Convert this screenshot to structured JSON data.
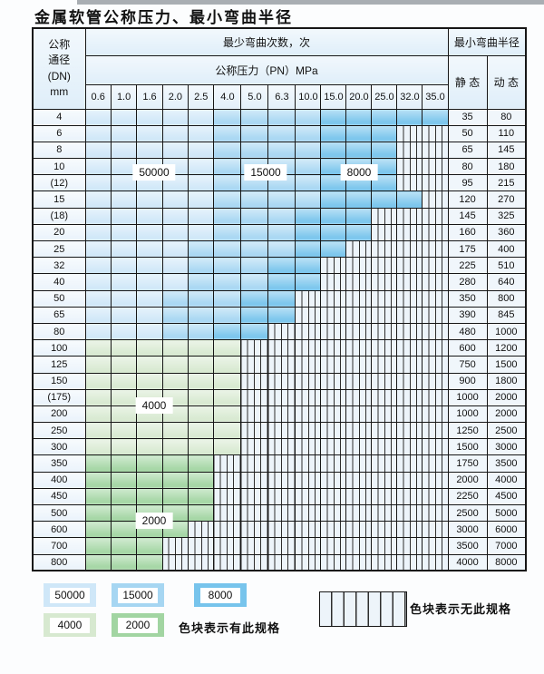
{
  "title": "金属软管公称压力、最小弯曲半径",
  "colors": {
    "50000": "#cfe7f8",
    "15000": "#a6d6f2",
    "8000": "#77c4ec",
    "4000": "#d7e9d0",
    "2000": "#a2d5a2",
    "hatch_bg": "#edf4fa",
    "header_bg": "#dfeef9",
    "border": "#161616"
  },
  "table": {
    "corner_header": "公称\n通径\n(DN)\nmm",
    "cycles_header": "最少弯曲次数，次",
    "pressure_header": "公称压力（PN）MPa",
    "radius_header": "最小弯曲半径",
    "static_label": "静 态",
    "dynamic_label": "动 态",
    "pressure_columns": [
      "0.6",
      "1.0",
      "1.6",
      "2.0",
      "2.5",
      "4.0",
      "5.0",
      "6.3",
      "10.0",
      "15.0",
      "20.0",
      "25.0",
      "32.0",
      "35.0"
    ],
    "overlay_labels": [
      {
        "value": "50000"
      },
      {
        "value": "15000"
      },
      {
        "value": "8000"
      },
      {
        "value": "4000"
      },
      {
        "value": "2000"
      }
    ],
    "rows": [
      {
        "dn": "4",
        "static": "35",
        "dynamic": "80",
        "cells": [
          "50000",
          "50000",
          "50000",
          "50000",
          "50000",
          "15000",
          "15000",
          "15000",
          "15000",
          "8000",
          "8000",
          "8000",
          "8000",
          "8000"
        ]
      },
      {
        "dn": "6",
        "static": "50",
        "dynamic": "110",
        "cells": [
          "50000",
          "50000",
          "50000",
          "50000",
          "50000",
          "15000",
          "15000",
          "15000",
          "15000",
          "8000",
          "8000",
          "8000",
          "",
          ""
        ]
      },
      {
        "dn": "8",
        "static": "65",
        "dynamic": "145",
        "cells": [
          "50000",
          "50000",
          "50000",
          "50000",
          "50000",
          "15000",
          "15000",
          "15000",
          "15000",
          "8000",
          "8000",
          "8000",
          "",
          ""
        ]
      },
      {
        "dn": "10",
        "static": "80",
        "dynamic": "180",
        "cells": [
          "50000",
          "50000",
          "50000",
          "50000",
          "50000",
          "15000",
          "15000",
          "15000",
          "15000",
          "8000",
          "8000",
          "8000",
          "",
          ""
        ]
      },
      {
        "dn": "(12)",
        "static": "95",
        "dynamic": "215",
        "cells": [
          "50000",
          "50000",
          "50000",
          "50000",
          "50000",
          "15000",
          "15000",
          "15000",
          "15000",
          "8000",
          "8000",
          "8000",
          "",
          ""
        ]
      },
      {
        "dn": "15",
        "static": "120",
        "dynamic": "270",
        "cells": [
          "50000",
          "50000",
          "50000",
          "50000",
          "50000",
          "15000",
          "15000",
          "15000",
          "15000",
          "8000",
          "8000",
          "8000",
          "8000",
          ""
        ]
      },
      {
        "dn": "(18)",
        "static": "145",
        "dynamic": "325",
        "cells": [
          "50000",
          "50000",
          "50000",
          "50000",
          "50000",
          "15000",
          "15000",
          "15000",
          "8000",
          "8000",
          "8000",
          "",
          "",
          ""
        ]
      },
      {
        "dn": "20",
        "static": "160",
        "dynamic": "360",
        "cells": [
          "50000",
          "50000",
          "50000",
          "50000",
          "50000",
          "15000",
          "15000",
          "15000",
          "8000",
          "8000",
          "8000",
          "",
          "",
          ""
        ]
      },
      {
        "dn": "25",
        "static": "175",
        "dynamic": "400",
        "cells": [
          "50000",
          "50000",
          "50000",
          "50000",
          "15000",
          "15000",
          "15000",
          "15000",
          "8000",
          "8000",
          "",
          "",
          "",
          ""
        ]
      },
      {
        "dn": "32",
        "static": "225",
        "dynamic": "510",
        "cells": [
          "50000",
          "50000",
          "50000",
          "50000",
          "15000",
          "15000",
          "15000",
          "8000",
          "8000",
          "",
          "",
          "",
          "",
          ""
        ]
      },
      {
        "dn": "40",
        "static": "280",
        "dynamic": "640",
        "cells": [
          "50000",
          "50000",
          "50000",
          "50000",
          "15000",
          "15000",
          "15000",
          "8000",
          "8000",
          "",
          "",
          "",
          "",
          ""
        ]
      },
      {
        "dn": "50",
        "static": "350",
        "dynamic": "800",
        "cells": [
          "50000",
          "50000",
          "50000",
          "15000",
          "15000",
          "15000",
          "8000",
          "8000",
          "",
          "",
          "",
          "",
          "",
          ""
        ]
      },
      {
        "dn": "65",
        "static": "390",
        "dynamic": "845",
        "cells": [
          "50000",
          "50000",
          "50000",
          "15000",
          "15000",
          "15000",
          "8000",
          "8000",
          "",
          "",
          "",
          "",
          "",
          ""
        ]
      },
      {
        "dn": "80",
        "static": "480",
        "dynamic": "1000",
        "cells": [
          "50000",
          "50000",
          "50000",
          "15000",
          "15000",
          "8000",
          "8000",
          "",
          "",
          "",
          "",
          "",
          "",
          ""
        ]
      },
      {
        "dn": "100",
        "static": "600",
        "dynamic": "1200",
        "cells": [
          "4000",
          "4000",
          "4000",
          "4000",
          "4000",
          "4000",
          "",
          "",
          "",
          "",
          "",
          "",
          "",
          ""
        ]
      },
      {
        "dn": "125",
        "static": "750",
        "dynamic": "1500",
        "cells": [
          "4000",
          "4000",
          "4000",
          "4000",
          "4000",
          "4000",
          "",
          "",
          "",
          "",
          "",
          "",
          "",
          ""
        ]
      },
      {
        "dn": "150",
        "static": "900",
        "dynamic": "1800",
        "cells": [
          "4000",
          "4000",
          "4000",
          "4000",
          "4000",
          "4000",
          "",
          "",
          "",
          "",
          "",
          "",
          "",
          ""
        ]
      },
      {
        "dn": "(175)",
        "static": "1000",
        "dynamic": "2000",
        "cells": [
          "4000",
          "4000",
          "4000",
          "4000",
          "4000",
          "4000",
          "",
          "",
          "",
          "",
          "",
          "",
          "",
          ""
        ]
      },
      {
        "dn": "200",
        "static": "1000",
        "dynamic": "2000",
        "cells": [
          "4000",
          "4000",
          "4000",
          "4000",
          "4000",
          "4000",
          "",
          "",
          "",
          "",
          "",
          "",
          "",
          ""
        ]
      },
      {
        "dn": "250",
        "static": "1250",
        "dynamic": "2500",
        "cells": [
          "4000",
          "4000",
          "4000",
          "4000",
          "4000",
          "4000",
          "",
          "",
          "",
          "",
          "",
          "",
          "",
          ""
        ]
      },
      {
        "dn": "300",
        "static": "1500",
        "dynamic": "3000",
        "cells": [
          "4000",
          "4000",
          "4000",
          "4000",
          "4000",
          "4000",
          "",
          "",
          "",
          "",
          "",
          "",
          "",
          ""
        ]
      },
      {
        "dn": "350",
        "static": "1750",
        "dynamic": "3500",
        "cells": [
          "2000",
          "2000",
          "2000",
          "2000",
          "2000",
          "",
          "",
          "",
          "",
          "",
          "",
          "",
          "",
          ""
        ]
      },
      {
        "dn": "400",
        "static": "2000",
        "dynamic": "4000",
        "cells": [
          "2000",
          "2000",
          "2000",
          "2000",
          "2000",
          "",
          "",
          "",
          "",
          "",
          "",
          "",
          "",
          ""
        ]
      },
      {
        "dn": "450",
        "static": "2250",
        "dynamic": "4500",
        "cells": [
          "2000",
          "2000",
          "2000",
          "2000",
          "2000",
          "",
          "",
          "",
          "",
          "",
          "",
          "",
          "",
          ""
        ]
      },
      {
        "dn": "500",
        "static": "2500",
        "dynamic": "5000",
        "cells": [
          "2000",
          "2000",
          "2000",
          "2000",
          "2000",
          "",
          "",
          "",
          "",
          "",
          "",
          "",
          "",
          ""
        ]
      },
      {
        "dn": "600",
        "static": "3000",
        "dynamic": "6000",
        "cells": [
          "2000",
          "2000",
          "2000",
          "2000",
          "",
          "",
          "",
          "",
          "",
          "",
          "",
          "",
          "",
          ""
        ]
      },
      {
        "dn": "700",
        "static": "3500",
        "dynamic": "7000",
        "cells": [
          "2000",
          "2000",
          "2000",
          "",
          "",
          "",
          "",
          "",
          "",
          "",
          "",
          "",
          "",
          ""
        ]
      },
      {
        "dn": "800",
        "static": "4000",
        "dynamic": "8000",
        "cells": [
          "2000",
          "2000",
          "2000",
          "",
          "",
          "",
          "",
          "",
          "",
          "",
          "",
          "",
          "",
          ""
        ]
      }
    ]
  },
  "legend": {
    "swatches": [
      {
        "value": "50000"
      },
      {
        "value": "15000"
      },
      {
        "value": "8000"
      },
      {
        "value": "4000"
      },
      {
        "value": "2000"
      }
    ],
    "available_label": "色块表示有此规格",
    "unavailable_label": "色块表示无此规格"
  }
}
